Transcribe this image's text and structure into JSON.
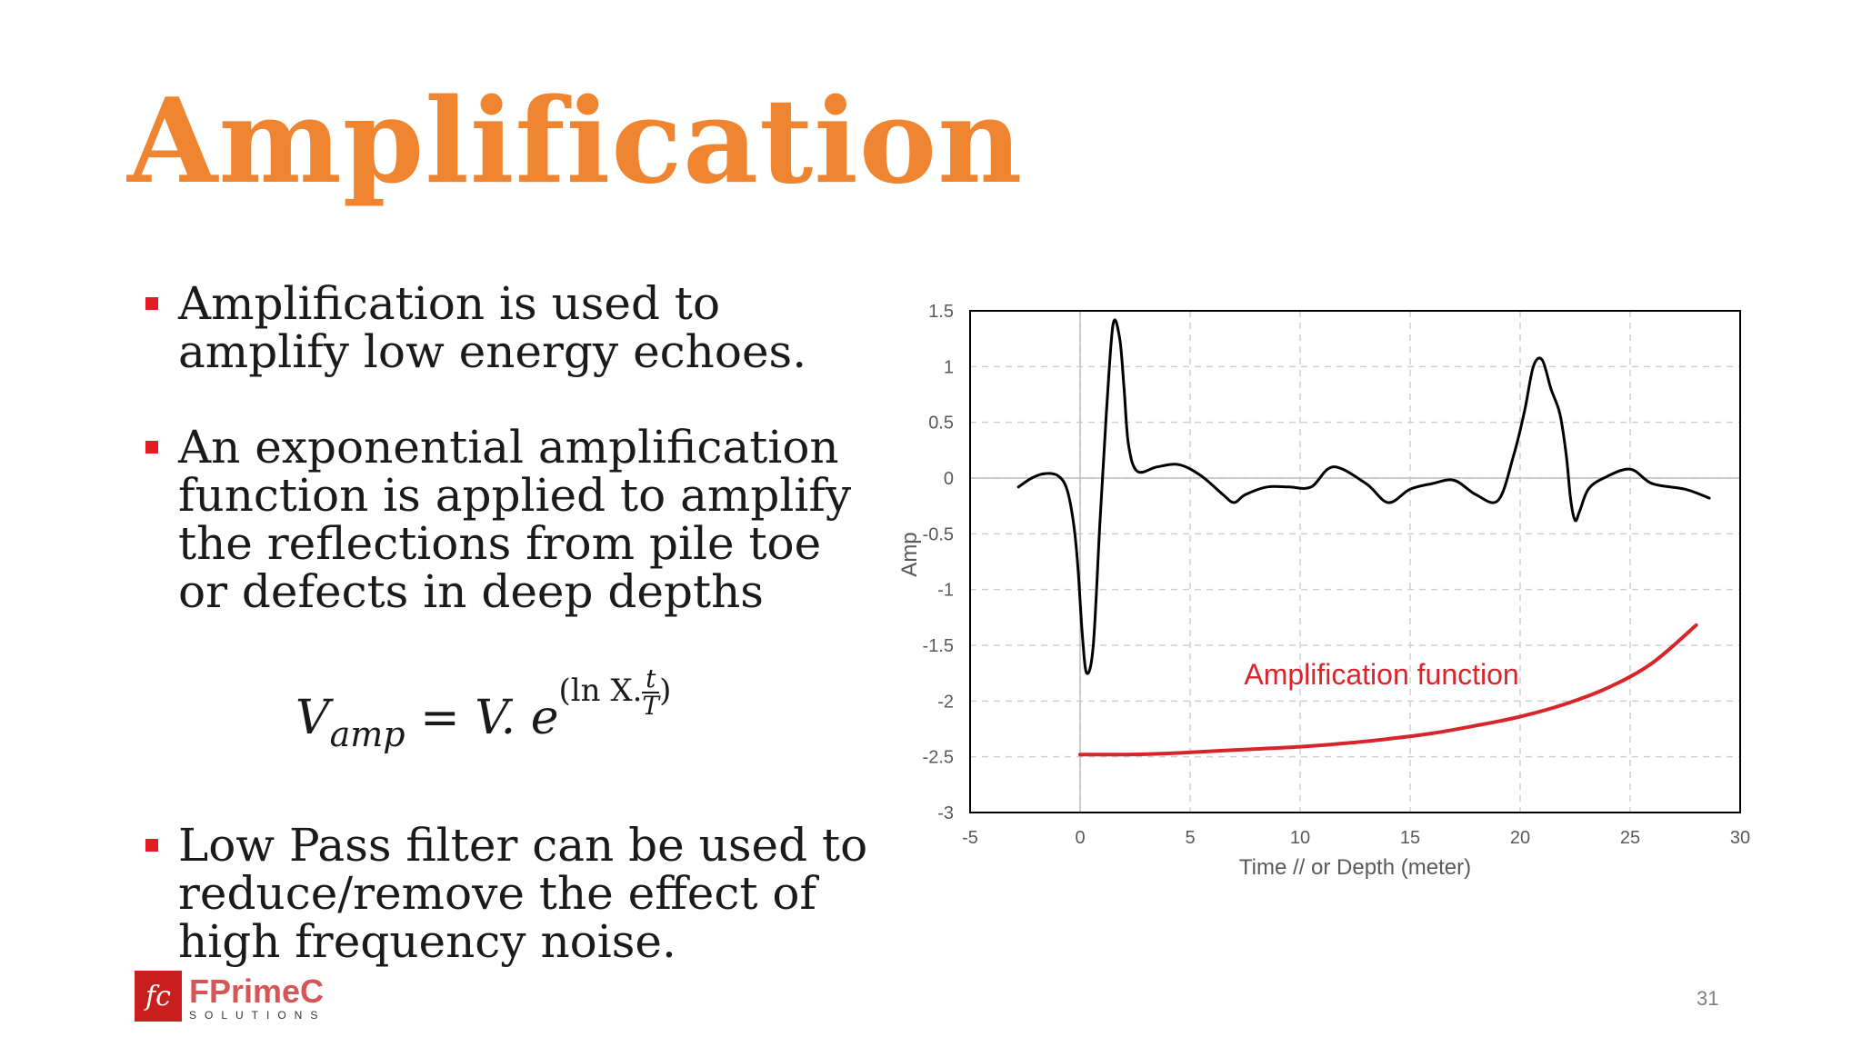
{
  "slide": {
    "title": "Amplification",
    "bullets": [
      "Amplification is used to amplify low energy echoes.",
      "An exponential amplification function is applied to amplify the reflections from pile toe or defects in deep depths",
      "Low Pass filter can be used to reduce/remove the effect of high frequency noise."
    ],
    "formula": {
      "lhs_main": "V",
      "lhs_sub": "amp",
      "rhs_main": " = V. e",
      "exp_open": "(ln X.",
      "exp_num": "t",
      "exp_den": "T",
      "exp_close": ")"
    },
    "page_number": "31"
  },
  "logo": {
    "mark": "fc",
    "name": "FPrimeC",
    "tagline": "SOLUTIONS"
  },
  "colors": {
    "title": "#EF8530",
    "bullet_marker": "#E31B23",
    "signal_line": "#000000",
    "amplification_curve": "#D7262B"
  },
  "chart_data": {
    "type": "line",
    "title": "",
    "xlabel": "Time // or Depth (meter)",
    "ylabel": "Amp",
    "xlim": [
      -5,
      30
    ],
    "ylim": [
      -3,
      1.5
    ],
    "x_ticks": [
      -5,
      0,
      5,
      10,
      15,
      20,
      25,
      30
    ],
    "y_ticks": [
      1.5,
      1,
      0.5,
      0,
      -0.5,
      -1,
      -1.5,
      -2,
      -2.5,
      -3
    ],
    "grid": true,
    "annotation": "Amplification function",
    "series": [
      {
        "name": "",
        "color": "#000000",
        "x": [
          -2.8,
          -2.2,
          -1.6,
          -1.0,
          -0.6,
          -0.3,
          -0.1,
          0.1,
          0.3,
          0.6,
          0.9,
          1.2,
          1.5,
          1.8,
          2.0,
          2.2,
          2.6,
          3.5,
          4.5,
          5.5,
          6.5,
          7.0,
          7.5,
          8.5,
          9.5,
          10.5,
          11.5,
          13,
          14,
          15,
          16,
          17,
          18,
          19,
          19.7,
          20.2,
          20.6,
          21.0,
          21.4,
          21.8,
          22.1,
          22.3,
          22.5,
          22.7,
          23.1,
          23.8,
          25,
          26,
          27.5,
          28.6
        ],
        "y": [
          -0.08,
          0.0,
          0.04,
          0.02,
          -0.1,
          -0.4,
          -0.8,
          -1.4,
          -1.75,
          -1.5,
          -0.4,
          0.6,
          1.38,
          1.25,
          0.8,
          0.3,
          0.06,
          0.1,
          0.12,
          0.02,
          -0.15,
          -0.22,
          -0.15,
          -0.08,
          -0.08,
          -0.08,
          0.1,
          -0.05,
          -0.22,
          -0.1,
          -0.05,
          -0.02,
          -0.15,
          -0.2,
          0.2,
          0.6,
          1.0,
          1.06,
          0.8,
          0.58,
          0.2,
          -0.2,
          -0.38,
          -0.3,
          -0.1,
          0.0,
          0.08,
          -0.05,
          -0.1,
          -0.18
        ]
      },
      {
        "name": "Amplification function",
        "color": "#D7262B",
        "x": [
          0,
          2,
          4,
          6,
          8,
          10,
          12,
          14,
          16,
          18,
          20,
          22,
          24,
          26,
          28
        ],
        "y": [
          -2.48,
          -2.48,
          -2.47,
          -2.45,
          -2.43,
          -2.41,
          -2.38,
          -2.34,
          -2.29,
          -2.22,
          -2.14,
          -2.03,
          -1.88,
          -1.66,
          -1.32
        ]
      }
    ]
  }
}
